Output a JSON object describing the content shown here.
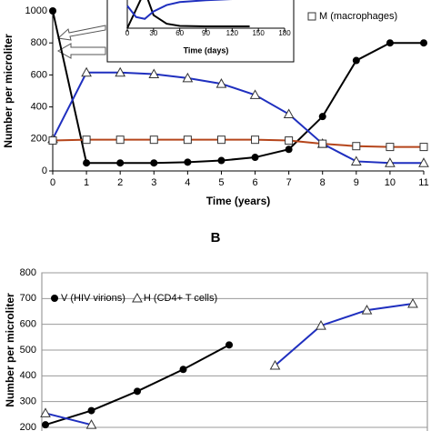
{
  "chart_data": [
    {
      "type": "line",
      "y_label": "Number per microliter",
      "x_label": "Time (years)",
      "x": [
        0,
        1,
        2,
        3,
        4,
        5,
        6,
        7,
        8,
        9,
        10,
        11
      ],
      "xlim": [
        0,
        11
      ],
      "xticks": [
        0,
        1,
        2,
        3,
        4,
        5,
        6,
        7,
        8,
        9,
        10,
        11
      ],
      "ylim": [
        0,
        1000
      ],
      "yticks": [
        0,
        200,
        400,
        600,
        800,
        1000
      ],
      "grid": false,
      "series": [
        {
          "color": "#000000",
          "marker": "circle",
          "values": [
            1000,
            50,
            50,
            50,
            55,
            65,
            85,
            135,
            340,
            690,
            800,
            800
          ]
        },
        {
          "color": "#1f2fbf",
          "marker": "triangle",
          "values": [
            200,
            615,
            615,
            605,
            580,
            545,
            475,
            355,
            170,
            60,
            50,
            50
          ]
        },
        {
          "name": "M (macrophages)",
          "color": "#b5451b",
          "marker": "square",
          "values": [
            190,
            195,
            195,
            195,
            195,
            195,
            195,
            190,
            170,
            155,
            150,
            150
          ]
        }
      ]
    },
    {
      "type": "line",
      "x_label": "Time (days)",
      "x": [
        0,
        10,
        20,
        30,
        45,
        60,
        90,
        120,
        140
      ],
      "xlim": [
        0,
        180
      ],
      "xticks": [
        0,
        30,
        60,
        90,
        120,
        150,
        180
      ],
      "ylim": [
        0,
        1000
      ],
      "series": [
        {
          "color": "#000000",
          "values": [
            0,
            500,
            1000,
            350,
            120,
            60,
            50,
            50,
            50
          ]
        },
        {
          "color": "#1f2fbf",
          "values": [
            600,
            300,
            250,
            450,
            620,
            700,
            750,
            780,
            790
          ]
        }
      ]
    },
    {
      "type": "line",
      "label": "B",
      "y_label": "Number per microliter",
      "x": [
        0,
        1,
        2,
        3,
        4,
        5,
        6,
        7,
        8
      ],
      "xlim": [
        0,
        8
      ],
      "ylim": [
        200,
        800
      ],
      "yticks": [
        200,
        300,
        400,
        500,
        600,
        700,
        800
      ],
      "grid": true,
      "series": [
        {
          "name": "V (HIV virions)",
          "color": "#000000",
          "marker": "circle",
          "values": [
            210,
            265,
            340,
            425,
            520,
            null,
            null,
            null,
            null
          ]
        },
        {
          "name": "H (CD4+ T cells)",
          "color": "#1f2fbf",
          "marker": "triangle",
          "values": [
            255,
            210,
            null,
            null,
            null,
            440,
            595,
            655,
            680
          ]
        }
      ]
    }
  ]
}
